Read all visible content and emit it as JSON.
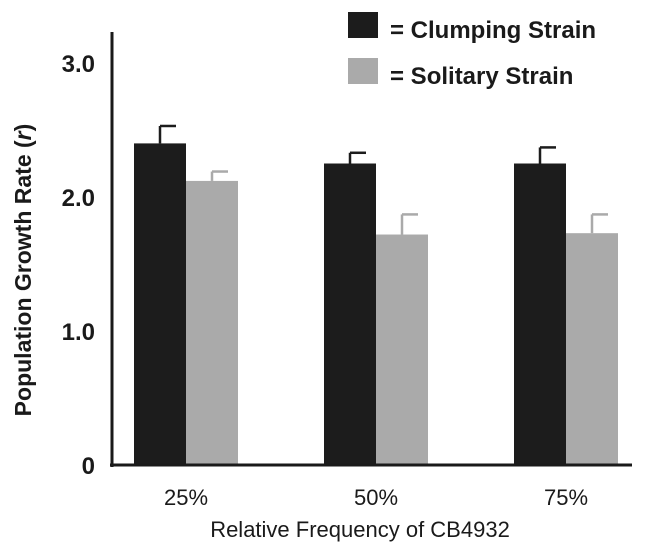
{
  "chart_data": {
    "type": "bar",
    "categories": [
      "25%",
      "50%",
      "75%"
    ],
    "series": [
      {
        "name": "= Clumping Strain",
        "color": "#1c1c1c",
        "values": [
          2.4,
          2.25,
          2.25
        ],
        "errors": [
          0.13,
          0.08,
          0.12
        ]
      },
      {
        "name": "= Solitary Strain",
        "color": "#aaaaaa",
        "values": [
          2.12,
          1.72,
          1.73
        ],
        "errors": [
          0.07,
          0.15,
          0.14
        ]
      }
    ],
    "xlabel": "Relative Frequency of CB4932",
    "ylabel_main": "Population Growth Rate (",
    "ylabel_italic": "r",
    "ylabel_end": ")",
    "ylim": [
      0,
      3.0
    ],
    "yticks": [
      {
        "value": 0,
        "label": "0"
      },
      {
        "value": 1.0,
        "label": "1.0"
      },
      {
        "value": 2.0,
        "label": "2.0"
      },
      {
        "value": 3.0,
        "label": "3.0"
      }
    ],
    "grid": false,
    "legend_position": "top-right"
  }
}
